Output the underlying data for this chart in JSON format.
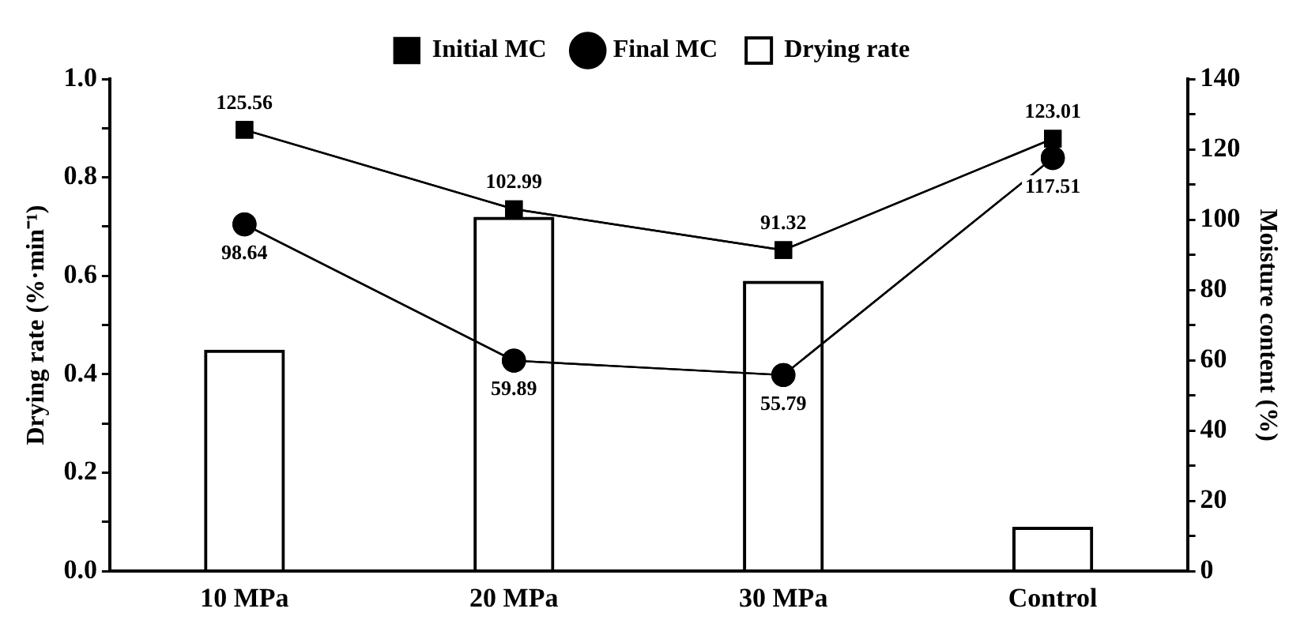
{
  "chart_data": {
    "type": "bar",
    "categories": [
      "10 MPa",
      "20 MPa",
      "30 MPa",
      "Control"
    ],
    "ylabel": "Drying rate (%·min⁻¹)",
    "y2label": "Moisture content (%)",
    "ylim": [
      0,
      1.0
    ],
    "yticks": [
      {
        "value": 0,
        "label": "0.0"
      },
      {
        "value": 0.1,
        "label": null
      },
      {
        "value": 0.2,
        "label": "0.2"
      },
      {
        "value": 0.3,
        "label": null
      },
      {
        "value": 0.4,
        "label": "0.4"
      },
      {
        "value": 0.5,
        "label": null
      },
      {
        "value": 0.6,
        "label": "0.6"
      },
      {
        "value": 0.7,
        "label": null
      },
      {
        "value": 0.8,
        "label": "0.8"
      },
      {
        "value": 0.9,
        "label": null
      },
      {
        "value": 1.0,
        "label": "1.0"
      }
    ],
    "y2lim": [
      0,
      140
    ],
    "y2ticks": [
      0,
      {
        "value": 10,
        "label": null
      },
      20,
      {
        "value": 30,
        "label": null
      },
      40,
      {
        "value": 50,
        "label": null
      },
      60,
      {
        "value": 70,
        "label": null
      },
      80,
      {
        "value": 90,
        "label": null
      },
      100,
      {
        "value": 110,
        "label": null
      },
      120,
      {
        "value": 130,
        "label": null
      },
      140
    ],
    "series": [
      {
        "name": "Initial MC",
        "type": "line",
        "axis": "y2",
        "color": "#000000",
        "marker": "square",
        "values": [
          125.56,
          102.99,
          91.32,
          123.01
        ],
        "value_labels": [
          "125.56",
          "102.99",
          "91.32",
          "123.01"
        ]
      },
      {
        "name": "Final MC",
        "type": "line",
        "axis": "y2",
        "color": "#000000",
        "marker": "circle",
        "values": [
          98.64,
          59.89,
          55.79,
          117.51
        ],
        "value_labels": [
          "98.64",
          "59.89",
          "55.79",
          "117.51"
        ]
      },
      {
        "name": "Drying rate",
        "type": "bar",
        "color": "#000000",
        "values": [
          0.45,
          0.72,
          0.59,
          0.09
        ]
      }
    ],
    "legend": "top",
    "grid": false
  }
}
